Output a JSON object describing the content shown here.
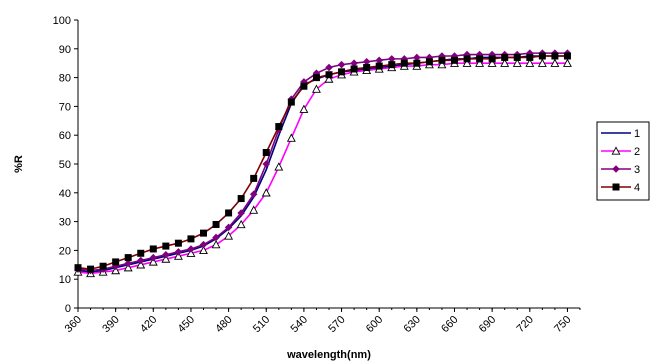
{
  "chart_data": {
    "type": "line",
    "title": "",
    "xlabel": "wavelength(nm)",
    "ylabel": "%R",
    "xlim": [
      360,
      760
    ],
    "ylim": [
      0,
      100
    ],
    "y_ticks": [
      0,
      10,
      20,
      30,
      40,
      50,
      60,
      70,
      80,
      90,
      100
    ],
    "x_ticks": [
      360,
      390,
      420,
      450,
      480,
      510,
      540,
      570,
      600,
      630,
      660,
      690,
      720,
      750
    ],
    "x_tick_labels": [
      "360",
      "390",
      "420",
      "450",
      "480",
      "510",
      "540",
      "570",
      "600",
      "630",
      "660",
      "690",
      "720",
      "750"
    ],
    "y_tick_labels": [
      "0",
      "10",
      "20",
      "30",
      "40",
      "50",
      "60",
      "70",
      "80",
      "90",
      "100"
    ],
    "grid": false,
    "legend_position": "right",
    "x": [
      360,
      370,
      380,
      390,
      400,
      410,
      420,
      430,
      440,
      450,
      460,
      470,
      480,
      490,
      500,
      510,
      520,
      530,
      540,
      550,
      560,
      570,
      580,
      590,
      600,
      610,
      620,
      630,
      640,
      650,
      660,
      670,
      680,
      690,
      700,
      710,
      720,
      730,
      740,
      750
    ],
    "series": [
      {
        "name": "1",
        "color": "#000080",
        "marker": "none",
        "values": [
          13,
          12.5,
          13,
          14,
          15,
          16,
          17,
          18,
          19,
          20,
          21.5,
          24,
          27.5,
          32,
          38.5,
          48,
          60,
          71,
          77.5,
          79.5,
          81,
          82,
          82.5,
          83,
          83.5,
          84,
          84.5,
          85,
          85.5,
          86,
          86.5,
          86.5,
          87,
          87,
          87,
          87,
          87.5,
          87.5,
          87.5,
          87.5
        ]
      },
      {
        "name": "2",
        "color": "#ff00ff",
        "marker": "triangle",
        "values": [
          12.5,
          12,
          12.5,
          13,
          14,
          15,
          16,
          17,
          18,
          19,
          20,
          22,
          25,
          29,
          34,
          40,
          49,
          59,
          69,
          76,
          79.5,
          81,
          82,
          82.5,
          83,
          83.5,
          84,
          84,
          84.5,
          84.5,
          85,
          85,
          85,
          85,
          85,
          85,
          85,
          85,
          85,
          85
        ]
      },
      {
        "name": "3",
        "color": "#800080",
        "marker": "diamond",
        "values": [
          13.5,
          13,
          13.5,
          14.5,
          15.5,
          16.5,
          17.5,
          18.5,
          19.5,
          20.5,
          22,
          24.5,
          28,
          33,
          39.5,
          50,
          62,
          72.5,
          78.5,
          81.5,
          83.5,
          84.5,
          85,
          85.5,
          86,
          86.5,
          86.5,
          87,
          87,
          87.5,
          87.5,
          88,
          88,
          88,
          88,
          88,
          88.5,
          88.5,
          88.5,
          88.5
        ]
      },
      {
        "name": "4",
        "color": "#800000",
        "marker": "square",
        "values": [
          14,
          13.5,
          14.5,
          16,
          17.5,
          19,
          20.5,
          21.5,
          22.5,
          24,
          26,
          29,
          33,
          38,
          45,
          54,
          63,
          71.5,
          77,
          80,
          81,
          82,
          83,
          83.5,
          84,
          84.5,
          85,
          85,
          85.5,
          86,
          86,
          86.5,
          86.5,
          86.5,
          87,
          87,
          87,
          87.5,
          87.5,
          87.5
        ]
      }
    ]
  }
}
